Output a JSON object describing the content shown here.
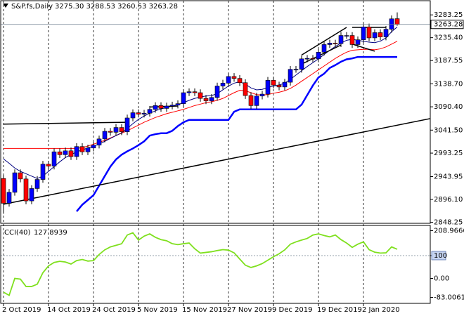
{
  "chart_data": {
    "type": "candlestick",
    "title": "S&P.fs,Daily",
    "ohlc_label": "3275.30 3288.53 3260.53 3263.28",
    "categories": [
      "2 Oct 2019",
      null,
      null,
      null,
      null,
      null,
      null,
      null,
      "14 Oct 2019",
      null,
      null,
      null,
      null,
      null,
      null,
      null,
      "24 Oct 2019",
      null,
      null,
      null,
      null,
      null,
      null,
      null,
      "5 Nov 2019",
      null,
      null,
      null,
      null,
      null,
      null,
      null,
      "15 Nov 2019",
      null,
      null,
      null,
      null,
      null,
      null,
      null,
      "27 Nov 2019",
      null,
      null,
      null,
      null,
      null,
      null,
      null,
      "9 Dec 2019",
      null,
      null,
      null,
      null,
      null,
      null,
      null,
      "19 Dec 2019",
      null,
      null,
      null,
      null,
      null,
      null,
      null,
      "2 Jan 2020",
      null,
      null,
      null,
      null,
      null,
      null
    ],
    "open": [
      2940,
      2888,
      2911,
      2952,
      2939,
      2893,
      2919,
      2938,
      2970,
      2966,
      2996,
      2990,
      2998,
      2986,
      3007,
      2996,
      3004,
      3010,
      3023,
      3039,
      3037,
      3047,
      3038,
      3067,
      3078,
      3075,
      3077,
      3085,
      3093,
      3087,
      3092,
      3094,
      3097,
      3120,
      3122,
      3120,
      3108,
      3103,
      3110,
      3134,
      3140,
      3154,
      3150,
      3141,
      3114,
      3093,
      3113,
      3117,
      3146,
      3136,
      3132,
      3142,
      3169,
      3169,
      3191,
      3192,
      3191,
      3205,
      3221,
      3224,
      3223,
      3240,
      3240,
      3221,
      3231,
      3258,
      3235,
      3246,
      3237,
      3253,
      3275.3
    ],
    "high": [
      2947,
      2918,
      2959,
      2959,
      2946,
      2926,
      2945,
      2977,
      2977,
      3003,
      3003,
      3005,
      3005,
      3014,
      3014,
      3011,
      3017,
      3030,
      3046,
      3046,
      3054,
      3054,
      3074,
      3085,
      3085,
      3084,
      3092,
      3100,
      3100,
      3099,
      3101,
      3104,
      3127,
      3129,
      3129,
      3127,
      3115,
      3117,
      3141,
      3147,
      3161,
      3161,
      3157,
      3148,
      3121,
      3120,
      3124,
      3153,
      3153,
      3143,
      3149,
      3176,
      3176,
      3198,
      3199,
      3199,
      3212,
      3228,
      3231,
      3231,
      3247,
      3247,
      3247,
      3238,
      3265,
      3265,
      3253,
      3253,
      3260,
      3282,
      3288.53
    ],
    "low": [
      2866,
      2881,
      2904,
      2932,
      2886,
      2886,
      2912,
      2931,
      2959,
      2959,
      2983,
      2983,
      2979,
      2979,
      2989,
      2989,
      2997,
      3003,
      3016,
      3030,
      3030,
      3031,
      3031,
      3060,
      3068,
      3068,
      3070,
      3078,
      3080,
      3080,
      3085,
      3087,
      3090,
      3113,
      3113,
      3101,
      3096,
      3096,
      3103,
      3127,
      3133,
      3143,
      3134,
      3107,
      3086,
      3086,
      3106,
      3110,
      3129,
      3125,
      3125,
      3135,
      3162,
      3162,
      3184,
      3184,
      3184,
      3198,
      3214,
      3216,
      3216,
      3233,
      3214,
      3214,
      3224,
      3228,
      3228,
      3230,
      3230,
      3246,
      3260.53
    ],
    "close": [
      2888,
      2911,
      2952,
      2939,
      2893,
      2919,
      2938,
      2970,
      2966,
      2996,
      2990,
      2998,
      2986,
      3007,
      2996,
      3004,
      3010,
      3023,
      3039,
      3037,
      3047,
      3038,
      3067,
      3078,
      3075,
      3077,
      3085,
      3093,
      3087,
      3092,
      3094,
      3097,
      3120,
      3122,
      3120,
      3108,
      3103,
      3110,
      3134,
      3140,
      3154,
      3150,
      3141,
      3114,
      3093,
      3113,
      3117,
      3146,
      3136,
      3132,
      3142,
      3169,
      3169,
      3191,
      3192,
      3191,
      3205,
      3221,
      3224,
      3223,
      3240,
      3240,
      3221,
      3231,
      3258,
      3235,
      3246,
      3237,
      3253,
      3275,
      3263.28
    ],
    "up_color": "#0000ff",
    "down_color": "#ff0000",
    "ylim": [
      2846,
      3313
    ],
    "yticks": [
      3283.25,
      {
        "value": 3235.4,
        "label": "3235.40"
      },
      3187.55,
      {
        "value": 3138.7,
        "label": "3138.70"
      },
      {
        "value": 3090.4,
        "label": "3090.40"
      },
      {
        "value": 3041.5,
        "label": "3041.50"
      },
      2993.25,
      2943.95,
      {
        "value": 2896.1,
        "label": "2896.10"
      },
      2848.25
    ],
    "last_price": 3263.28,
    "grid": true,
    "overlays": [
      {
        "color": "#ff0000",
        "width": 1,
        "values": [
          3003,
          3003,
          3003,
          3003,
          3003,
          3003,
          3003,
          3003,
          3003,
          3003,
          3003,
          3003,
          3003,
          3003,
          3005,
          3008,
          3012,
          3016,
          3020,
          3025,
          3030,
          3035,
          3040,
          3046,
          3052,
          3058,
          3063,
          3068,
          3072,
          3076,
          3079,
          3082,
          3085,
          3089,
          3093,
          3096,
          3099,
          3101,
          3104,
          3108,
          3114,
          3120,
          3125,
          3124,
          3120,
          3116,
          3115,
          3116,
          3119,
          3121,
          3124,
          3129,
          3136,
          3144,
          3152,
          3160,
          3168,
          3176,
          3184,
          3192,
          3199,
          3205,
          3209,
          3210,
          3211,
          3211,
          3210,
          3212,
          3216,
          3222,
          3228
        ]
      },
      {
        "color": "#000080",
        "width": 1,
        "values": [
          2981,
          2972,
          2962,
          2955,
          2950,
          2945,
          2940,
          2945,
          2955,
          2965,
          2975,
          2984,
          2990,
          2996,
          3000,
          3004,
          3008,
          3012,
          3018,
          3024,
          3030,
          3036,
          3045,
          3055,
          3064,
          3071,
          3077,
          3082,
          3086,
          3089,
          3092,
          3095,
          3099,
          3104,
          3108,
          3111,
          3113,
          3114,
          3118,
          3126,
          3134,
          3140,
          3143,
          3138,
          3130,
          3126,
          3127,
          3131,
          3134,
          3136,
          3140,
          3148,
          3157,
          3166,
          3175,
          3183,
          3191,
          3200,
          3209,
          3217,
          3224,
          3230,
          3232,
          3230,
          3228,
          3226,
          3225,
          3228,
          3235,
          3248,
          3258
        ]
      },
      {
        "color": "#0000ff",
        "width": 2.5,
        "values": [
          null,
          null,
          null,
          null,
          null,
          null,
          null,
          null,
          null,
          null,
          null,
          null,
          null,
          2871,
          2885,
          2895,
          2905,
          2925,
          2945,
          2965,
          2980,
          2990,
          2997,
          3003,
          3010,
          3018,
          3030,
          3033,
          3035,
          3035,
          3040,
          3050,
          3058,
          3063,
          3063,
          3063,
          3063,
          3063,
          3063,
          3063,
          3063,
          3080,
          3085,
          3085,
          3085,
          3085,
          3085,
          3085,
          3085,
          3085,
          3085,
          3085,
          3085,
          3095,
          3115,
          3135,
          3152,
          3160,
          3172,
          3178,
          3185,
          3190,
          3192,
          3195,
          3195,
          3195,
          3195,
          3195,
          3195,
          3195,
          3195
        ]
      }
    ],
    "trendlines": [
      {
        "x": [
          0,
          22
        ],
        "values": [
          3054,
          3058
        ]
      },
      {
        "x": [
          0,
          76
        ],
        "values": [
          2886,
          3066
        ]
      },
      {
        "x": [
          26,
          31
        ],
        "values": [
          3090,
          3092
        ]
      },
      {
        "x": [
          53,
          61
        ],
        "values": [
          3199,
          3257
        ]
      },
      {
        "x": [
          53,
          60
        ],
        "values": [
          3180,
          3220
        ]
      },
      {
        "x": [
          62,
          68
        ],
        "values": [
          3257,
          3257
        ]
      },
      {
        "x": [
          62,
          66
        ],
        "values": [
          3222,
          3207
        ]
      }
    ],
    "indicator": {
      "name": "CCI(40)",
      "color": "#7fe01e",
      "values": [
        -60,
        -74,
        0,
        -3,
        -35,
        -35,
        -25,
        25,
        55,
        70,
        75,
        72,
        63,
        78,
        83,
        76,
        78,
        105,
        125,
        138,
        145,
        152,
        190,
        200,
        168,
        185,
        195,
        180,
        170,
        165,
        152,
        148,
        152,
        155,
        130,
        111,
        114,
        117,
        122,
        126,
        124,
        112,
        85,
        58,
        48,
        55,
        65,
        80,
        95,
        108,
        125,
        150,
        160,
        168,
        175,
        190,
        195,
        188,
        182,
        190,
        170,
        155,
        136,
        150,
        160,
        126,
        115,
        111,
        112,
        138,
        127.8939
      ],
      "ylim": [
        -109,
        229
      ],
      "yticks": [
        208.9666,
        100,
        {
          "value": 0,
          "label": "0.00"
        },
        -83.0061
      ],
      "levels": [
        100
      ]
    }
  }
}
